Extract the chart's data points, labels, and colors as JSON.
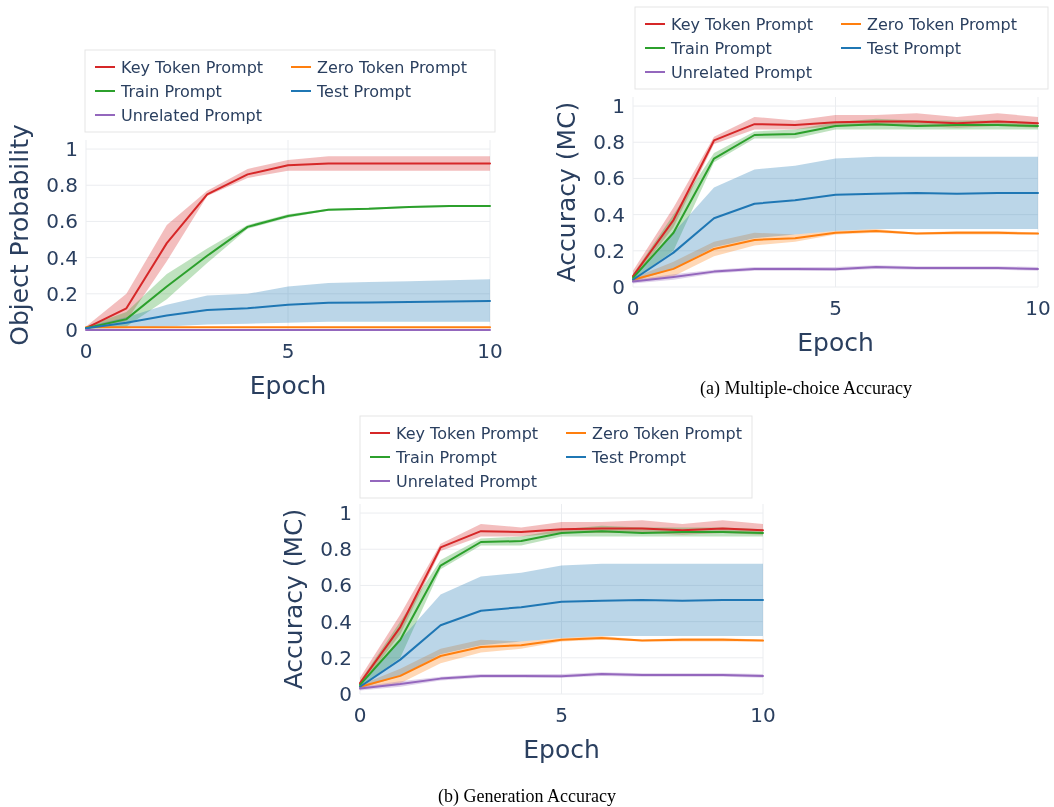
{
  "chart_data": [
    {
      "type": "line",
      "xlabel": "Epoch",
      "ylabel": "Object Probability",
      "x": [
        0,
        1,
        2,
        3,
        4,
        5,
        6,
        7,
        8,
        9,
        10
      ],
      "xlim": [
        0,
        10
      ],
      "xticks": [
        0,
        5,
        10
      ],
      "ylim": [
        0,
        1.05
      ],
      "yticks": [
        0,
        0.2,
        0.4,
        0.6,
        0.8,
        1
      ],
      "grid": true,
      "legend": "top",
      "line_style": "solid",
      "marker": "none",
      "series": [
        {
          "name": "Key Token Prompt",
          "color": "#d62728",
          "values": [
            0.01,
            0.12,
            0.48,
            0.75,
            0.86,
            0.91,
            0.92,
            0.92,
            0.92,
            0.92,
            0.92
          ],
          "lower": [
            0.01,
            0.05,
            0.38,
            0.74,
            0.84,
            0.88,
            0.88,
            0.88,
            0.88,
            0.88,
            0.88
          ],
          "upper": [
            0.02,
            0.2,
            0.58,
            0.77,
            0.89,
            0.94,
            0.96,
            0.96,
            0.96,
            0.96,
            0.96
          ]
        },
        {
          "name": "Zero Token Prompt",
          "color": "#ff7f0e",
          "values": [
            0.015,
            0.015,
            0.015,
            0.015,
            0.015,
            0.015,
            0.015,
            0.015,
            0.015,
            0.015,
            0.015
          ]
        },
        {
          "name": "Train Prompt",
          "color": "#2ca02c",
          "values": [
            0.01,
            0.06,
            0.24,
            0.41,
            0.57,
            0.63,
            0.665,
            0.67,
            0.68,
            0.685,
            0.685
          ],
          "lower": [
            0.01,
            0.02,
            0.17,
            0.37,
            0.56,
            0.62,
            0.66,
            0.665,
            0.675,
            0.68,
            0.68
          ],
          "upper": [
            0.02,
            0.1,
            0.31,
            0.45,
            0.58,
            0.64,
            0.67,
            0.675,
            0.685,
            0.69,
            0.69
          ]
        },
        {
          "name": "Test Prompt",
          "color": "#1f77b4",
          "values": [
            0.01,
            0.04,
            0.08,
            0.11,
            0.12,
            0.14,
            0.15,
            0.152,
            0.155,
            0.158,
            0.16
          ],
          "lower": [
            0.005,
            0.01,
            0.02,
            0.03,
            0.035,
            0.04,
            0.045,
            0.045,
            0.045,
            0.045,
            0.045
          ],
          "upper": [
            0.02,
            0.07,
            0.14,
            0.19,
            0.2,
            0.24,
            0.26,
            0.265,
            0.27,
            0.275,
            0.28
          ]
        },
        {
          "name": "Unrelated Prompt",
          "color": "#9467bd",
          "values": [
            0,
            0,
            0,
            0,
            0,
            0,
            0,
            0,
            0,
            0,
            0
          ]
        }
      ]
    },
    {
      "type": "line",
      "xlabel": "Epoch",
      "ylabel": "Accuracy (MC)",
      "annotations": [
        "(a) Multiple-choice Accuracy"
      ],
      "x": [
        0,
        1,
        2,
        3,
        4,
        5,
        6,
        7,
        8,
        9,
        10
      ],
      "xlim": [
        0,
        10
      ],
      "xticks": [
        0,
        5,
        10
      ],
      "ylim": [
        0,
        1.05
      ],
      "yticks": [
        0,
        0.2,
        0.4,
        0.6,
        0.8,
        1
      ],
      "grid": true,
      "legend": "top",
      "line_style": "solid",
      "marker": "none",
      "series": [
        {
          "name": "Key Token Prompt",
          "color": "#d62728",
          "values": [
            0.06,
            0.37,
            0.81,
            0.9,
            0.895,
            0.91,
            0.915,
            0.915,
            0.905,
            0.915,
            0.905
          ],
          "lower": [
            0.04,
            0.33,
            0.79,
            0.87,
            0.87,
            0.89,
            0.89,
            0.89,
            0.88,
            0.89,
            0.88
          ],
          "upper": [
            0.09,
            0.44,
            0.83,
            0.94,
            0.92,
            0.95,
            0.95,
            0.96,
            0.94,
            0.96,
            0.94
          ]
        },
        {
          "name": "Zero Token Prompt",
          "color": "#ff7f0e",
          "values": [
            0.04,
            0.1,
            0.21,
            0.26,
            0.27,
            0.3,
            0.31,
            0.295,
            0.3,
            0.3,
            0.295
          ],
          "lower": [
            0.03,
            0.06,
            0.17,
            0.23,
            0.25,
            0.29,
            0.3,
            0.29,
            0.29,
            0.29,
            0.29
          ],
          "upper": [
            0.05,
            0.14,
            0.25,
            0.3,
            0.29,
            0.31,
            0.32,
            0.3,
            0.31,
            0.31,
            0.3
          ]
        },
        {
          "name": "Train Prompt",
          "color": "#2ca02c",
          "values": [
            0.05,
            0.3,
            0.71,
            0.84,
            0.845,
            0.89,
            0.9,
            0.89,
            0.895,
            0.895,
            0.89
          ],
          "lower": [
            0.04,
            0.2,
            0.69,
            0.82,
            0.82,
            0.87,
            0.87,
            0.87,
            0.87,
            0.87,
            0.87
          ],
          "upper": [
            0.07,
            0.4,
            0.74,
            0.86,
            0.87,
            0.91,
            0.93,
            0.92,
            0.92,
            0.92,
            0.91
          ]
        },
        {
          "name": "Test Prompt",
          "color": "#1f77b4",
          "values": [
            0.04,
            0.19,
            0.38,
            0.46,
            0.48,
            0.51,
            0.515,
            0.52,
            0.515,
            0.52,
            0.52
          ],
          "lower": [
            0.03,
            0.1,
            0.22,
            0.27,
            0.29,
            0.31,
            0.32,
            0.32,
            0.32,
            0.32,
            0.32
          ],
          "upper": [
            0.06,
            0.3,
            0.55,
            0.65,
            0.67,
            0.71,
            0.72,
            0.72,
            0.72,
            0.72,
            0.72
          ]
        },
        {
          "name": "Unrelated Prompt",
          "color": "#9467bd",
          "values": [
            0.03,
            0.055,
            0.085,
            0.1,
            0.1,
            0.098,
            0.11,
            0.105,
            0.105,
            0.105,
            0.1
          ],
          "lower": [
            0.02,
            0.04,
            0.075,
            0.09,
            0.09,
            0.09,
            0.1,
            0.095,
            0.095,
            0.095,
            0.09
          ],
          "upper": [
            0.04,
            0.07,
            0.095,
            0.11,
            0.11,
            0.11,
            0.12,
            0.115,
            0.115,
            0.115,
            0.11
          ]
        }
      ]
    },
    {
      "type": "line",
      "xlabel": "Epoch",
      "ylabel": "Accuracy (MC)",
      "annotations": [
        "(b) Generation Accuracy"
      ],
      "x": [
        0,
        1,
        2,
        3,
        4,
        5,
        6,
        7,
        8,
        9,
        10
      ],
      "xlim": [
        0,
        10
      ],
      "xticks": [
        0,
        5,
        10
      ],
      "ylim": [
        0,
        1.05
      ],
      "yticks": [
        0,
        0.2,
        0.4,
        0.6,
        0.8,
        1
      ],
      "grid": true,
      "legend": "top",
      "line_style": "solid",
      "marker": "none",
      "series": [
        {
          "name": "Key Token Prompt",
          "color": "#d62728",
          "values": [
            0.06,
            0.37,
            0.81,
            0.9,
            0.895,
            0.91,
            0.915,
            0.915,
            0.905,
            0.915,
            0.905
          ],
          "lower": [
            0.04,
            0.33,
            0.79,
            0.87,
            0.87,
            0.89,
            0.89,
            0.89,
            0.88,
            0.89,
            0.88
          ],
          "upper": [
            0.09,
            0.44,
            0.83,
            0.94,
            0.92,
            0.95,
            0.95,
            0.96,
            0.94,
            0.96,
            0.94
          ]
        },
        {
          "name": "Zero Token Prompt",
          "color": "#ff7f0e",
          "values": [
            0.04,
            0.1,
            0.21,
            0.26,
            0.27,
            0.3,
            0.31,
            0.295,
            0.3,
            0.3,
            0.295
          ],
          "lower": [
            0.03,
            0.06,
            0.17,
            0.23,
            0.25,
            0.29,
            0.3,
            0.29,
            0.29,
            0.29,
            0.29
          ],
          "upper": [
            0.05,
            0.14,
            0.25,
            0.3,
            0.29,
            0.31,
            0.32,
            0.3,
            0.31,
            0.31,
            0.3
          ]
        },
        {
          "name": "Train Prompt",
          "color": "#2ca02c",
          "values": [
            0.05,
            0.3,
            0.71,
            0.84,
            0.845,
            0.89,
            0.9,
            0.89,
            0.895,
            0.895,
            0.89
          ],
          "lower": [
            0.04,
            0.2,
            0.69,
            0.82,
            0.82,
            0.87,
            0.87,
            0.87,
            0.87,
            0.87,
            0.87
          ],
          "upper": [
            0.07,
            0.4,
            0.74,
            0.86,
            0.87,
            0.91,
            0.93,
            0.92,
            0.92,
            0.92,
            0.91
          ]
        },
        {
          "name": "Test Prompt",
          "color": "#1f77b4",
          "values": [
            0.04,
            0.19,
            0.38,
            0.46,
            0.48,
            0.51,
            0.515,
            0.52,
            0.515,
            0.52,
            0.52
          ],
          "lower": [
            0.03,
            0.1,
            0.22,
            0.27,
            0.29,
            0.31,
            0.32,
            0.32,
            0.32,
            0.32,
            0.32
          ],
          "upper": [
            0.06,
            0.3,
            0.55,
            0.65,
            0.67,
            0.71,
            0.72,
            0.72,
            0.72,
            0.72,
            0.72
          ]
        },
        {
          "name": "Unrelated Prompt",
          "color": "#9467bd",
          "values": [
            0.03,
            0.055,
            0.085,
            0.1,
            0.1,
            0.098,
            0.11,
            0.105,
            0.105,
            0.105,
            0.1
          ],
          "lower": [
            0.02,
            0.04,
            0.075,
            0.09,
            0.09,
            0.09,
            0.1,
            0.095,
            0.095,
            0.095,
            0.09
          ],
          "upper": [
            0.04,
            0.07,
            0.095,
            0.11,
            0.11,
            0.11,
            0.12,
            0.115,
            0.115,
            0.115,
            0.11
          ]
        }
      ]
    }
  ]
}
